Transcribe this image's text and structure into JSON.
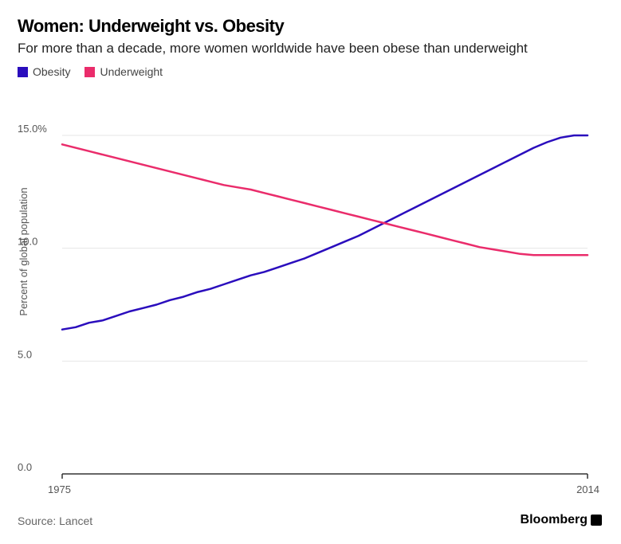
{
  "header": {
    "title": "Women: Underweight vs. Obesity",
    "subtitle": "For more than a decade, more women worldwide have been obese than underweight"
  },
  "footer": {
    "source": "Source: Lancet",
    "brand": "Bloomberg"
  },
  "colors": {
    "obesity": "#2a0dbd",
    "underweight": "#ea2c6b",
    "grid": "#e6e6e6",
    "axis": "#555555"
  },
  "chart_data": {
    "type": "line",
    "title": "Women: Underweight vs. Obesity",
    "subtitle": "For more than a decade, more women worldwide have been obese than underweight",
    "xlabel": "",
    "ylabel": "Percent of global population",
    "xlim": [
      1975,
      2014
    ],
    "ylim": [
      0,
      15
    ],
    "yticks": [
      0,
      5,
      10,
      15
    ],
    "ytick_labels": [
      "0.0",
      "5.0",
      "10.0",
      "15.0%"
    ],
    "xtick_labels": [
      "1975",
      "2014"
    ],
    "grid": true,
    "legend_position": "top-left",
    "x": [
      1975,
      1976,
      1977,
      1978,
      1979,
      1980,
      1981,
      1982,
      1983,
      1984,
      1985,
      1986,
      1987,
      1988,
      1989,
      1990,
      1991,
      1992,
      1993,
      1994,
      1995,
      1996,
      1997,
      1998,
      1999,
      2000,
      2001,
      2002,
      2003,
      2004,
      2005,
      2006,
      2007,
      2008,
      2009,
      2010,
      2011,
      2012,
      2013,
      2014
    ],
    "series": [
      {
        "name": "Obesity",
        "color": "#2a0dbd",
        "values": [
          6.4,
          6.5,
          6.7,
          6.8,
          7.0,
          7.2,
          7.35,
          7.5,
          7.7,
          7.85,
          8.05,
          8.2,
          8.4,
          8.6,
          8.8,
          8.95,
          9.15,
          9.35,
          9.55,
          9.8,
          10.05,
          10.3,
          10.55,
          10.85,
          11.15,
          11.45,
          11.75,
          12.05,
          12.35,
          12.65,
          12.95,
          13.25,
          13.55,
          13.85,
          14.15,
          14.45,
          14.7,
          14.9,
          15.0,
          15.0
        ]
      },
      {
        "name": "Underweight",
        "color": "#ea2c6b",
        "values": [
          14.6,
          14.45,
          14.3,
          14.15,
          14.0,
          13.85,
          13.7,
          13.55,
          13.4,
          13.25,
          13.1,
          12.95,
          12.8,
          12.7,
          12.6,
          12.45,
          12.3,
          12.15,
          12.0,
          11.85,
          11.7,
          11.55,
          11.4,
          11.25,
          11.1,
          10.95,
          10.8,
          10.65,
          10.5,
          10.35,
          10.2,
          10.05,
          9.95,
          9.85,
          9.75,
          9.7,
          9.7,
          9.7,
          9.7,
          9.7
        ]
      }
    ]
  }
}
